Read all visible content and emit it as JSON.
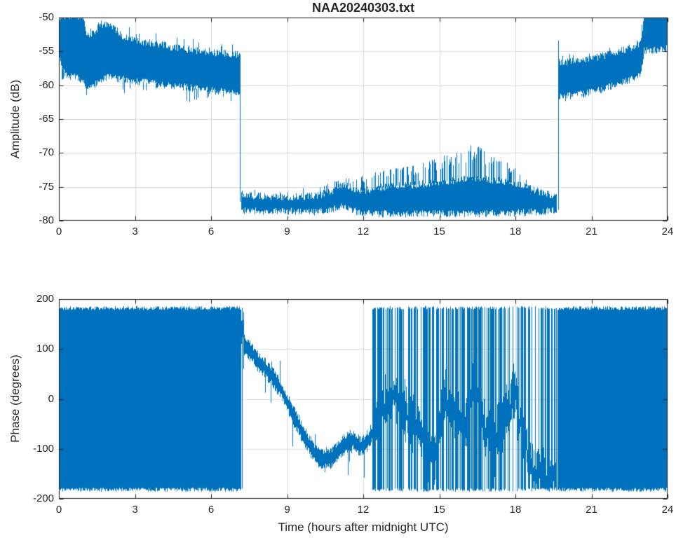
{
  "figure": {
    "background": "#ffffff",
    "axes_color": "#1a1a1a",
    "grid_color": "#dbdbdb",
    "tick_label_color": "#262626",
    "line_color": "#0072BD"
  },
  "chart_data": [
    {
      "type": "line",
      "id": "amplitude",
      "title": "NAA20240303.txt",
      "ylabel": "Amplitude (dB)",
      "xlabel": "",
      "xlim": [
        0,
        24
      ],
      "ylim": [
        -80,
        -50
      ],
      "xticks": [
        0,
        3,
        6,
        9,
        12,
        15,
        18,
        21,
        24
      ],
      "yticks": [
        -80,
        -75,
        -70,
        -65,
        -60,
        -55,
        -50
      ],
      "grid": true,
      "line_color": "#0072BD",
      "envelopes": {
        "day1_upper": [
          [
            0,
            -50.2
          ],
          [
            0.12,
            -49.7
          ],
          [
            0.95,
            -49.8
          ],
          [
            1.1,
            -52.6
          ],
          [
            1.45,
            -52.3
          ],
          [
            1.55,
            -50.9
          ],
          [
            1.9,
            -51.2
          ],
          [
            2.25,
            -51.8
          ],
          [
            2.5,
            -52.8
          ],
          [
            3,
            -53.3
          ],
          [
            3.5,
            -53.7
          ],
          [
            4,
            -54.0
          ],
          [
            4.5,
            -54.4
          ],
          [
            5,
            -54.7
          ],
          [
            5.5,
            -54.9
          ],
          [
            6,
            -55.2
          ],
          [
            6.5,
            -55.3
          ],
          [
            7.13,
            -55.5
          ]
        ],
        "day1_lower": [
          [
            0,
            -55.5
          ],
          [
            0.12,
            -57.5
          ],
          [
            0.35,
            -59.0
          ],
          [
            0.6,
            -58.6
          ],
          [
            0.9,
            -59.3
          ],
          [
            1.15,
            -60.6
          ],
          [
            1.45,
            -59.8
          ],
          [
            1.8,
            -58.8
          ],
          [
            2.3,
            -59.0
          ],
          [
            3,
            -59.4
          ],
          [
            4,
            -59.9
          ],
          [
            5,
            -60.3
          ],
          [
            6,
            -60.8
          ],
          [
            6.7,
            -61.0
          ],
          [
            7.13,
            -61.7
          ]
        ],
        "day1_spike_lower": [
          [
            0,
            -59.5
          ],
          [
            0.3,
            -61.0
          ],
          [
            1.2,
            -62.0
          ],
          [
            2.2,
            -62.0
          ],
          [
            3,
            -61.0
          ],
          [
            4,
            -61.5
          ],
          [
            4.9,
            -62.8
          ],
          [
            5.3,
            -62.3
          ],
          [
            6,
            -61.8
          ],
          [
            7.12,
            -62.8
          ]
        ],
        "night_upper": [
          [
            7.17,
            -76.2
          ],
          [
            8,
            -76.4
          ],
          [
            9,
            -76.5
          ],
          [
            10,
            -76.4
          ],
          [
            10.6,
            -75.9
          ],
          [
            11.1,
            -74.9
          ],
          [
            11.35,
            -74.7
          ],
          [
            11.6,
            -75.3
          ],
          [
            12,
            -75.6
          ],
          [
            12.5,
            -75.2
          ],
          [
            13,
            -74.9
          ],
          [
            14,
            -74.7
          ],
          [
            15,
            -74.3
          ],
          [
            16,
            -73.9
          ],
          [
            16.5,
            -73.7
          ],
          [
            17,
            -74.0
          ],
          [
            17.5,
            -74.2
          ],
          [
            18,
            -74.5
          ],
          [
            18.5,
            -75.0
          ],
          [
            19,
            -75.9
          ],
          [
            19.62,
            -76.5
          ]
        ],
        "night_lower": [
          [
            7.17,
            -78.5
          ],
          [
            8,
            -78.6
          ],
          [
            9,
            -78.6
          ],
          [
            10,
            -78.8
          ],
          [
            10.8,
            -78.3
          ],
          [
            11.2,
            -77.7
          ],
          [
            11.45,
            -78.2
          ],
          [
            11.8,
            -78.8
          ],
          [
            12.5,
            -79.0
          ],
          [
            14,
            -79.0
          ],
          [
            16,
            -79.0
          ],
          [
            18,
            -78.9
          ],
          [
            19.62,
            -78.5
          ]
        ],
        "night_spike_upper": [
          [
            7.2,
            -75.4
          ],
          [
            9,
            -75.4
          ],
          [
            10.4,
            -74.8
          ],
          [
            11,
            -74.0
          ],
          [
            12,
            -73.2
          ],
          [
            13,
            -72.4
          ],
          [
            14,
            -71.8
          ],
          [
            15,
            -70.6
          ],
          [
            16,
            -69.4
          ],
          [
            16.35,
            -68.4
          ],
          [
            17,
            -70.4
          ],
          [
            17.5,
            -71.0
          ],
          [
            18,
            -72.2
          ],
          [
            18.5,
            -73.6
          ],
          [
            19.0,
            -75.2
          ],
          [
            19.6,
            -76.0
          ]
        ],
        "night_spike_prob": [
          [
            7.2,
            0.05
          ],
          [
            10.3,
            0.08
          ],
          [
            10.5,
            0.3
          ],
          [
            16,
            0.38
          ],
          [
            17,
            0.32
          ],
          [
            18.5,
            0.2
          ],
          [
            19.2,
            0.08
          ],
          [
            19.6,
            0.05
          ]
        ],
        "day2_upper": [
          [
            19.7,
            -56.6
          ],
          [
            20.3,
            -56.5
          ],
          [
            21,
            -56.0
          ],
          [
            21.5,
            -55.6
          ],
          [
            22,
            -55.1
          ],
          [
            22.5,
            -54.5
          ],
          [
            22.92,
            -53.8
          ],
          [
            23.0,
            -52.0
          ],
          [
            23.06,
            -49.6
          ],
          [
            23.9,
            -49.6
          ],
          [
            24,
            -49.8
          ]
        ],
        "day2_lower": [
          [
            19.7,
            -61.8
          ],
          [
            20.3,
            -61.5
          ],
          [
            21,
            -61.0
          ],
          [
            21.5,
            -60.5
          ],
          [
            22,
            -59.9
          ],
          [
            22.5,
            -59.2
          ],
          [
            22.92,
            -58.5
          ],
          [
            23.0,
            -56.5
          ],
          [
            23.06,
            -54.9
          ],
          [
            23.85,
            -54.8
          ],
          [
            24,
            -54.0
          ]
        ],
        "day2_spike_lower": [
          [
            19.7,
            -62.5
          ],
          [
            21,
            -61.8
          ],
          [
            22,
            -60.5
          ],
          [
            22.9,
            -59.0
          ],
          [
            23.05,
            -55.5
          ],
          [
            24,
            -55.5
          ]
        ]
      },
      "transitions": {
        "dropout_t": 7.145,
        "sunrise_t": 19.68,
        "step_t": 23.0
      },
      "events": [
        {
          "type": "vline",
          "t": 7.145,
          "from": -55.4,
          "to": -77.2
        },
        {
          "type": "vline",
          "t": 19.68,
          "from": -78.4,
          "to": -53.4
        },
        {
          "type": "vline",
          "t": 4.92,
          "from": -59.5,
          "to": -53.2
        }
      ],
      "spans": {
        "day1": [
          0,
          7.13
        ],
        "night": [
          7.17,
          19.62
        ],
        "day2": [
          19.7,
          24
        ]
      }
    },
    {
      "type": "line",
      "id": "phase",
      "title": "",
      "ylabel": "Phase (degrees)",
      "xlabel": "Time (hours after midnight UTC)",
      "xlim": [
        0,
        24
      ],
      "ylim": [
        -200,
        200
      ],
      "xticks": [
        0,
        3,
        6,
        9,
        12,
        15,
        18,
        21,
        24
      ],
      "yticks": [
        -200,
        -100,
        0,
        100,
        200
      ],
      "grid": true,
      "line_color": "#0072BD",
      "wrap_level": 180,
      "segments": [
        {
          "type": "block",
          "t0": 0,
          "t1": 7.08
        },
        {
          "type": "chaos",
          "t0": 7.08,
          "t1": 7.28,
          "halfwidth": 38,
          "trend": [
            [
              7.08,
              115
            ],
            [
              7.28,
              98
            ]
          ],
          "wrap_prob": [
            [
              7.08,
              0.35
            ],
            [
              7.28,
              0.15
            ]
          ]
        },
        {
          "type": "trend",
          "t0": 7.28,
          "t1": 12.35,
          "halfwidth": 15,
          "points": [
            [
              7.28,
              98
            ],
            [
              7.6,
              82
            ],
            [
              8.0,
              58
            ],
            [
              8.4,
              38
            ],
            [
              8.8,
              12
            ],
            [
              9.2,
              -32
            ],
            [
              9.6,
              -68
            ],
            [
              10.0,
              -98
            ],
            [
              10.35,
              -118
            ],
            [
              10.7,
              -112
            ],
            [
              11.0,
              -96
            ],
            [
              11.35,
              -76
            ],
            [
              11.6,
              -70
            ],
            [
              11.85,
              -88
            ],
            [
              12.1,
              -75
            ],
            [
              12.35,
              -62
            ]
          ]
        },
        {
          "type": "chaos",
          "t0": 12.35,
          "t1": 19.62,
          "halfwidth": 35,
          "trend": [
            [
              12.35,
              -58
            ],
            [
              12.8,
              25
            ],
            [
              13.2,
              45
            ],
            [
              13.6,
              -5
            ],
            [
              14.0,
              -30
            ],
            [
              14.4,
              -62
            ],
            [
              14.8,
              -95
            ],
            [
              15.2,
              35
            ],
            [
              15.6,
              -15
            ],
            [
              16.0,
              -42
            ],
            [
              16.4,
              58
            ],
            [
              16.8,
              -35
            ],
            [
              17.2,
              -62
            ],
            [
              17.6,
              -18
            ],
            [
              18.0,
              28
            ],
            [
              18.3,
              -45
            ],
            [
              18.6,
              -112
            ],
            [
              19.0,
              -132
            ],
            [
              19.3,
              -148
            ],
            [
              19.62,
              -152
            ]
          ],
          "wrap_prob": [
            [
              12.35,
              0.78
            ],
            [
              13.0,
              0.6
            ],
            [
              13.4,
              0.42
            ],
            [
              13.9,
              0.3
            ],
            [
              14.5,
              0.68
            ],
            [
              15.0,
              0.45
            ],
            [
              15.6,
              0.62
            ],
            [
              16.1,
              0.5
            ],
            [
              16.7,
              0.66
            ],
            [
              17.3,
              0.45
            ],
            [
              17.9,
              0.38
            ],
            [
              18.5,
              0.66
            ],
            [
              19.0,
              0.5
            ],
            [
              19.62,
              0.55
            ]
          ]
        },
        {
          "type": "block",
          "t0": 19.65,
          "t1": 24
        }
      ]
    }
  ]
}
